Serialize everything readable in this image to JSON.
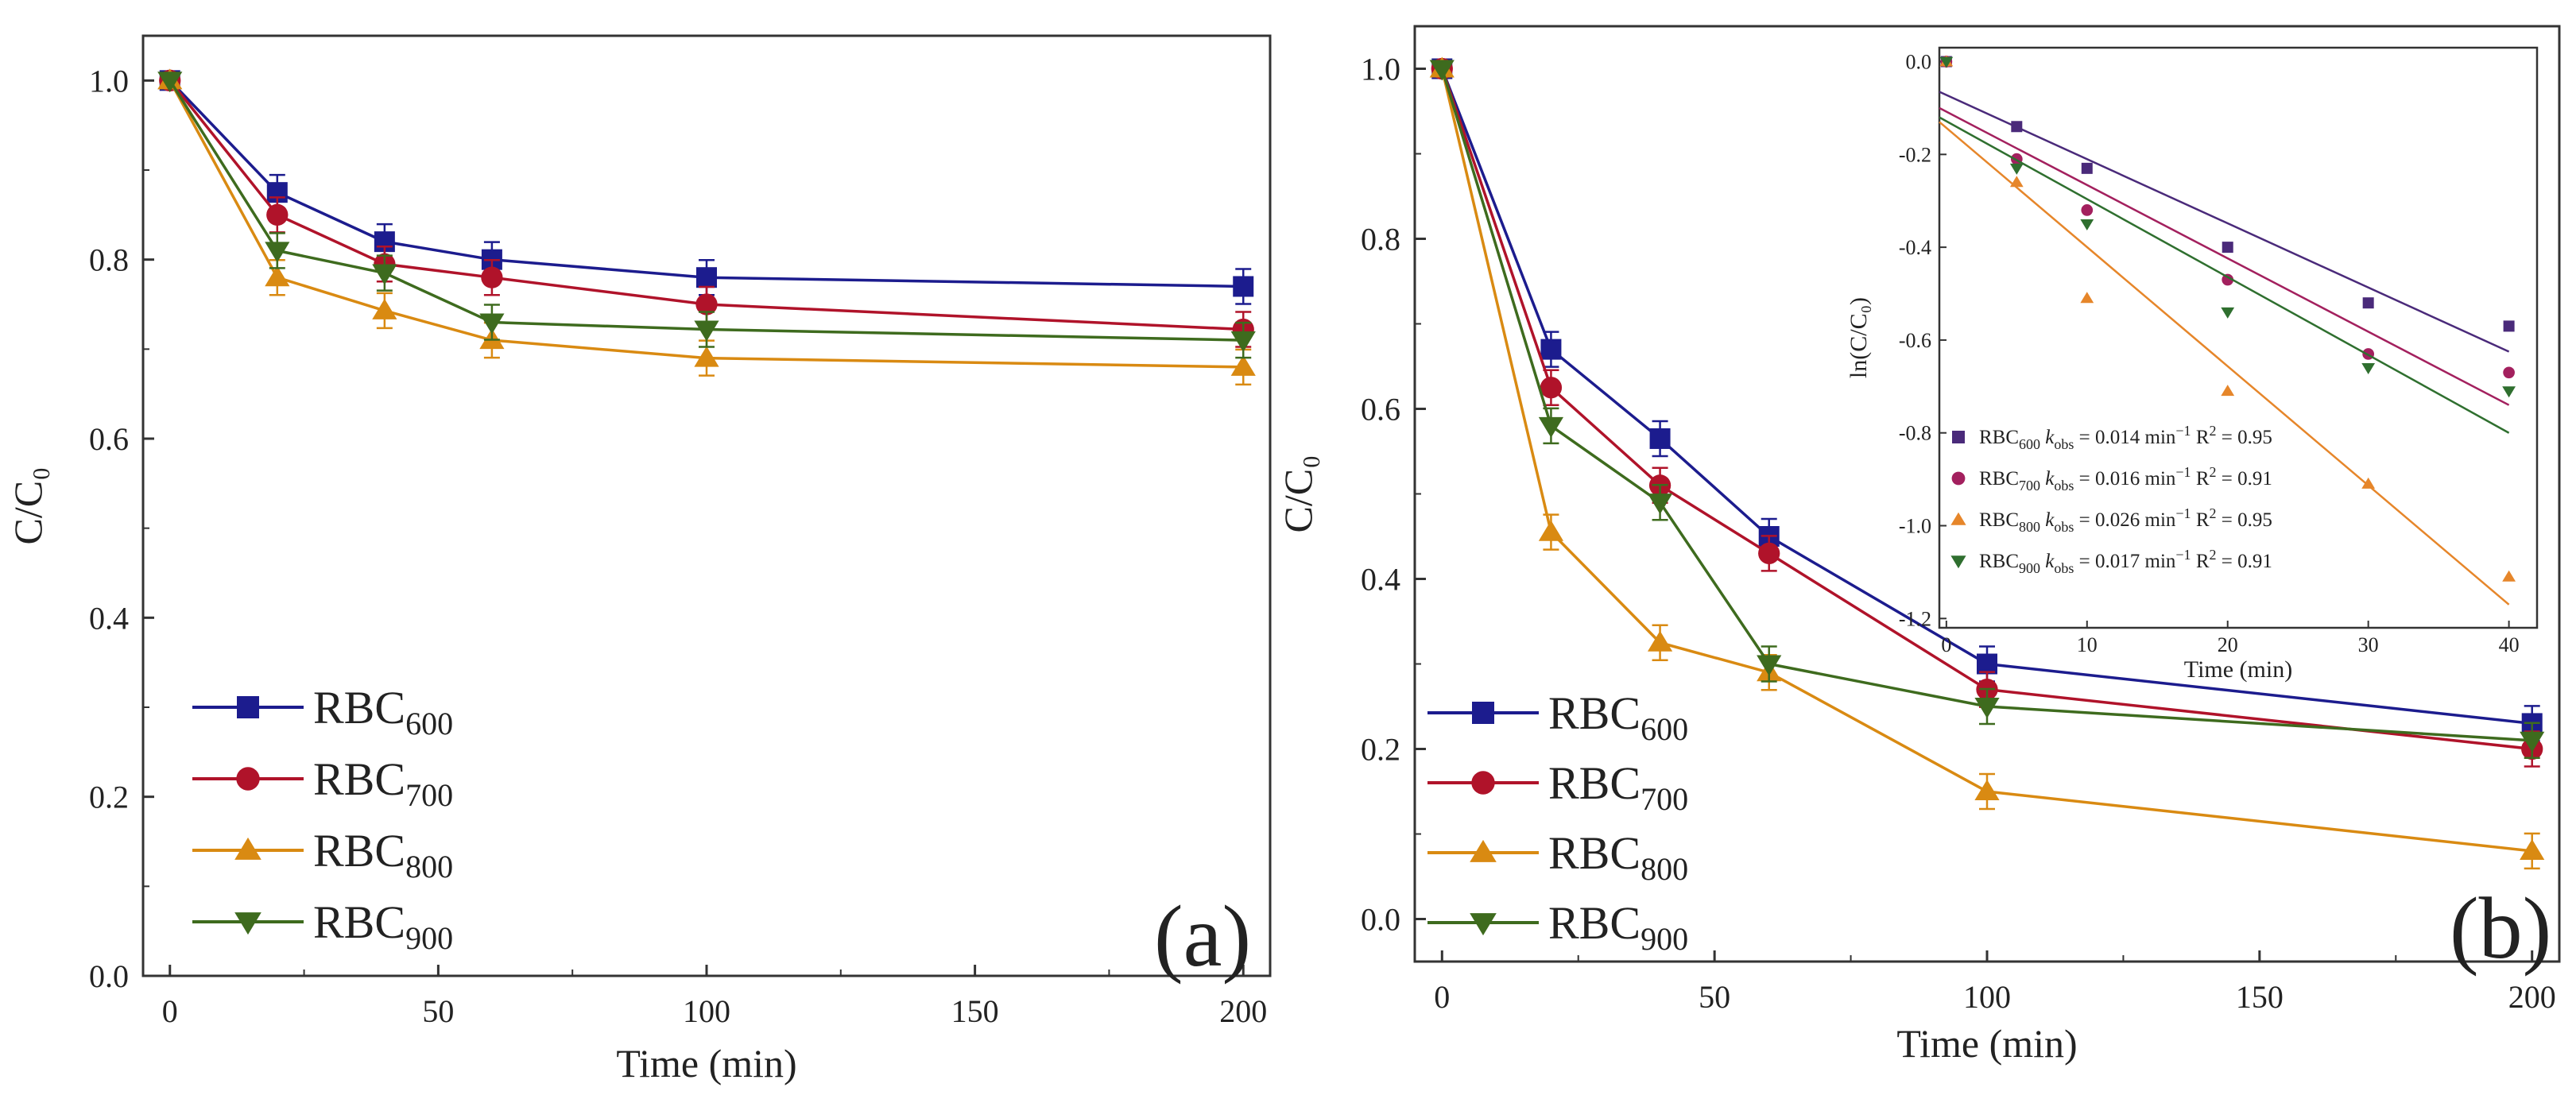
{
  "colors": {
    "RBC600": "#1c1c8e",
    "RBC700": "#b0132a",
    "RBC800": "#d98a12",
    "RBC900": "#3e6b1e",
    "inset_RBC600": "#4a2a7a",
    "inset_RBC700": "#a3205e",
    "inset_RBC800": "#e6862a",
    "inset_RBC900": "#2f6f2f"
  },
  "chart_data": [
    {
      "panel": "(a)",
      "type": "line",
      "xlabel": "Time (min)",
      "ylabel": "C/C₀",
      "xlim": [
        -5,
        205
      ],
      "ylim": [
        0.0,
        1.05
      ],
      "xticks": [
        0,
        50,
        100,
        150,
        200
      ],
      "yticks": [
        0.0,
        0.2,
        0.4,
        0.6,
        0.8,
        1.0
      ],
      "xtick_labels": [
        "0",
        "50",
        "100",
        "150",
        "200"
      ],
      "ytick_labels": [
        "0.0",
        "0.2",
        "0.4",
        "0.6",
        "0.8",
        "1.0"
      ],
      "x": [
        0,
        20,
        40,
        60,
        100,
        200
      ],
      "legend_position": "bottom-left",
      "series": [
        {
          "name": "RBC600",
          "base": "RBC",
          "sub": "600",
          "marker": "square",
          "values": [
            1.0,
            0.875,
            0.82,
            0.8,
            0.78,
            0.77
          ]
        },
        {
          "name": "RBC700",
          "base": "RBC",
          "sub": "700",
          "marker": "circle",
          "values": [
            1.0,
            0.85,
            0.795,
            0.78,
            0.75,
            0.722
          ]
        },
        {
          "name": "RBC800",
          "base": "RBC",
          "sub": "800",
          "marker": "triangle-up",
          "values": [
            1.0,
            0.78,
            0.743,
            0.71,
            0.69,
            0.68
          ]
        },
        {
          "name": "RBC900",
          "base": "RBC",
          "sub": "900",
          "marker": "triangle-down",
          "values": [
            1.0,
            0.81,
            0.785,
            0.73,
            0.722,
            0.71
          ]
        }
      ]
    },
    {
      "panel": "(b)",
      "type": "line",
      "xlabel": "Time (min)",
      "ylabel": "C/C₀",
      "xlim": [
        -5,
        205
      ],
      "ylim": [
        -0.05,
        1.05
      ],
      "xticks": [
        0,
        50,
        100,
        150,
        200
      ],
      "yticks": [
        0.0,
        0.2,
        0.4,
        0.6,
        0.8,
        1.0
      ],
      "xtick_labels": [
        "0",
        "50",
        "100",
        "150",
        "200"
      ],
      "ytick_labels": [
        "0.0",
        "0.2",
        "0.4",
        "0.6",
        "0.8",
        "1.0"
      ],
      "x": [
        0,
        20,
        40,
        60,
        100,
        200
      ],
      "legend_position": "bottom-left",
      "series": [
        {
          "name": "RBC600",
          "base": "RBC",
          "sub": "600",
          "marker": "square",
          "values": [
            1.0,
            0.67,
            0.565,
            0.45,
            0.3,
            0.23
          ]
        },
        {
          "name": "RBC700",
          "base": "RBC",
          "sub": "700",
          "marker": "circle",
          "values": [
            1.0,
            0.625,
            0.51,
            0.43,
            0.27,
            0.2
          ]
        },
        {
          "name": "RBC800",
          "base": "RBC",
          "sub": "800",
          "marker": "triangle-up",
          "values": [
            1.0,
            0.455,
            0.325,
            0.29,
            0.15,
            0.08
          ]
        },
        {
          "name": "RBC900",
          "base": "RBC",
          "sub": "900",
          "marker": "triangle-down",
          "values": [
            1.0,
            0.58,
            0.49,
            0.3,
            0.25,
            0.21
          ]
        }
      ],
      "inset": {
        "type": "scatter",
        "xlabel": "Time (min)",
        "ylabel": "ln(C/C₀)",
        "xlim": [
          -0.5,
          42
        ],
        "ylim": [
          -1.22,
          0.03
        ],
        "xticks": [
          0,
          10,
          20,
          30,
          40
        ],
        "yticks": [
          0.0,
          -0.2,
          -0.4,
          -0.6,
          -0.8,
          -1.0,
          -1.2
        ],
        "xtick_labels": [
          "0",
          "10",
          "20",
          "30",
          "40"
        ],
        "ytick_labels": [
          "0.0",
          "-0.2",
          "-0.4",
          "-0.6",
          "-0.8",
          "-1.0",
          "-1.2"
        ],
        "x": [
          0,
          5,
          10,
          20,
          30,
          40
        ],
        "series": [
          {
            "name": "RBC600",
            "marker": "square",
            "values": [
              0.0,
              -0.14,
              -0.23,
              -0.4,
              -0.52,
              -0.57
            ],
            "fit": [
              -0.065,
              -0.625
            ],
            "legend": {
              "base": "RBC",
              "sub": "600",
              "k": "k",
              "ksub": "obs",
              "eq": " = 0.014 min",
              "sup": "−1",
              "r": " R",
              "r2": "2",
              "req": " = 0.95"
            }
          },
          {
            "name": "RBC700",
            "marker": "circle",
            "values": [
              0.0,
              -0.21,
              -0.32,
              -0.47,
              -0.63,
              -0.67
            ],
            "fit": [
              -0.1,
              -0.74
            ],
            "legend": {
              "base": "RBC",
              "sub": "700",
              "k": "k",
              "ksub": "obs",
              "eq": " = 0.016 min",
              "sup": "−1",
              "r": " R",
              "r2": "2",
              "req": " = 0.91"
            }
          },
          {
            "name": "RBC800",
            "marker": "triangle-up",
            "values": [
              0.0,
              -0.26,
              -0.51,
              -0.71,
              -0.91,
              -1.11
            ],
            "fit": [
              -0.13,
              -1.17
            ],
            "legend": {
              "base": "RBC",
              "sub": "800",
              "k": "k",
              "ksub": "obs",
              "eq": " = 0.026 min",
              "sup": "−1",
              "r": " R",
              "r2": "2",
              "req": " = 0.95"
            }
          },
          {
            "name": "RBC900",
            "marker": "triangle-down",
            "values": [
              0.0,
              -0.23,
              -0.35,
              -0.54,
              -0.66,
              -0.71
            ],
            "fit": [
              -0.12,
              -0.8
            ],
            "legend": {
              "base": "RBC",
              "sub": "900",
              "k": "k",
              "ksub": "obs",
              "eq": " = 0.017 min",
              "sup": "−1",
              "r": " R",
              "r2": "2",
              "req": " = 0.91"
            }
          }
        ]
      }
    }
  ]
}
